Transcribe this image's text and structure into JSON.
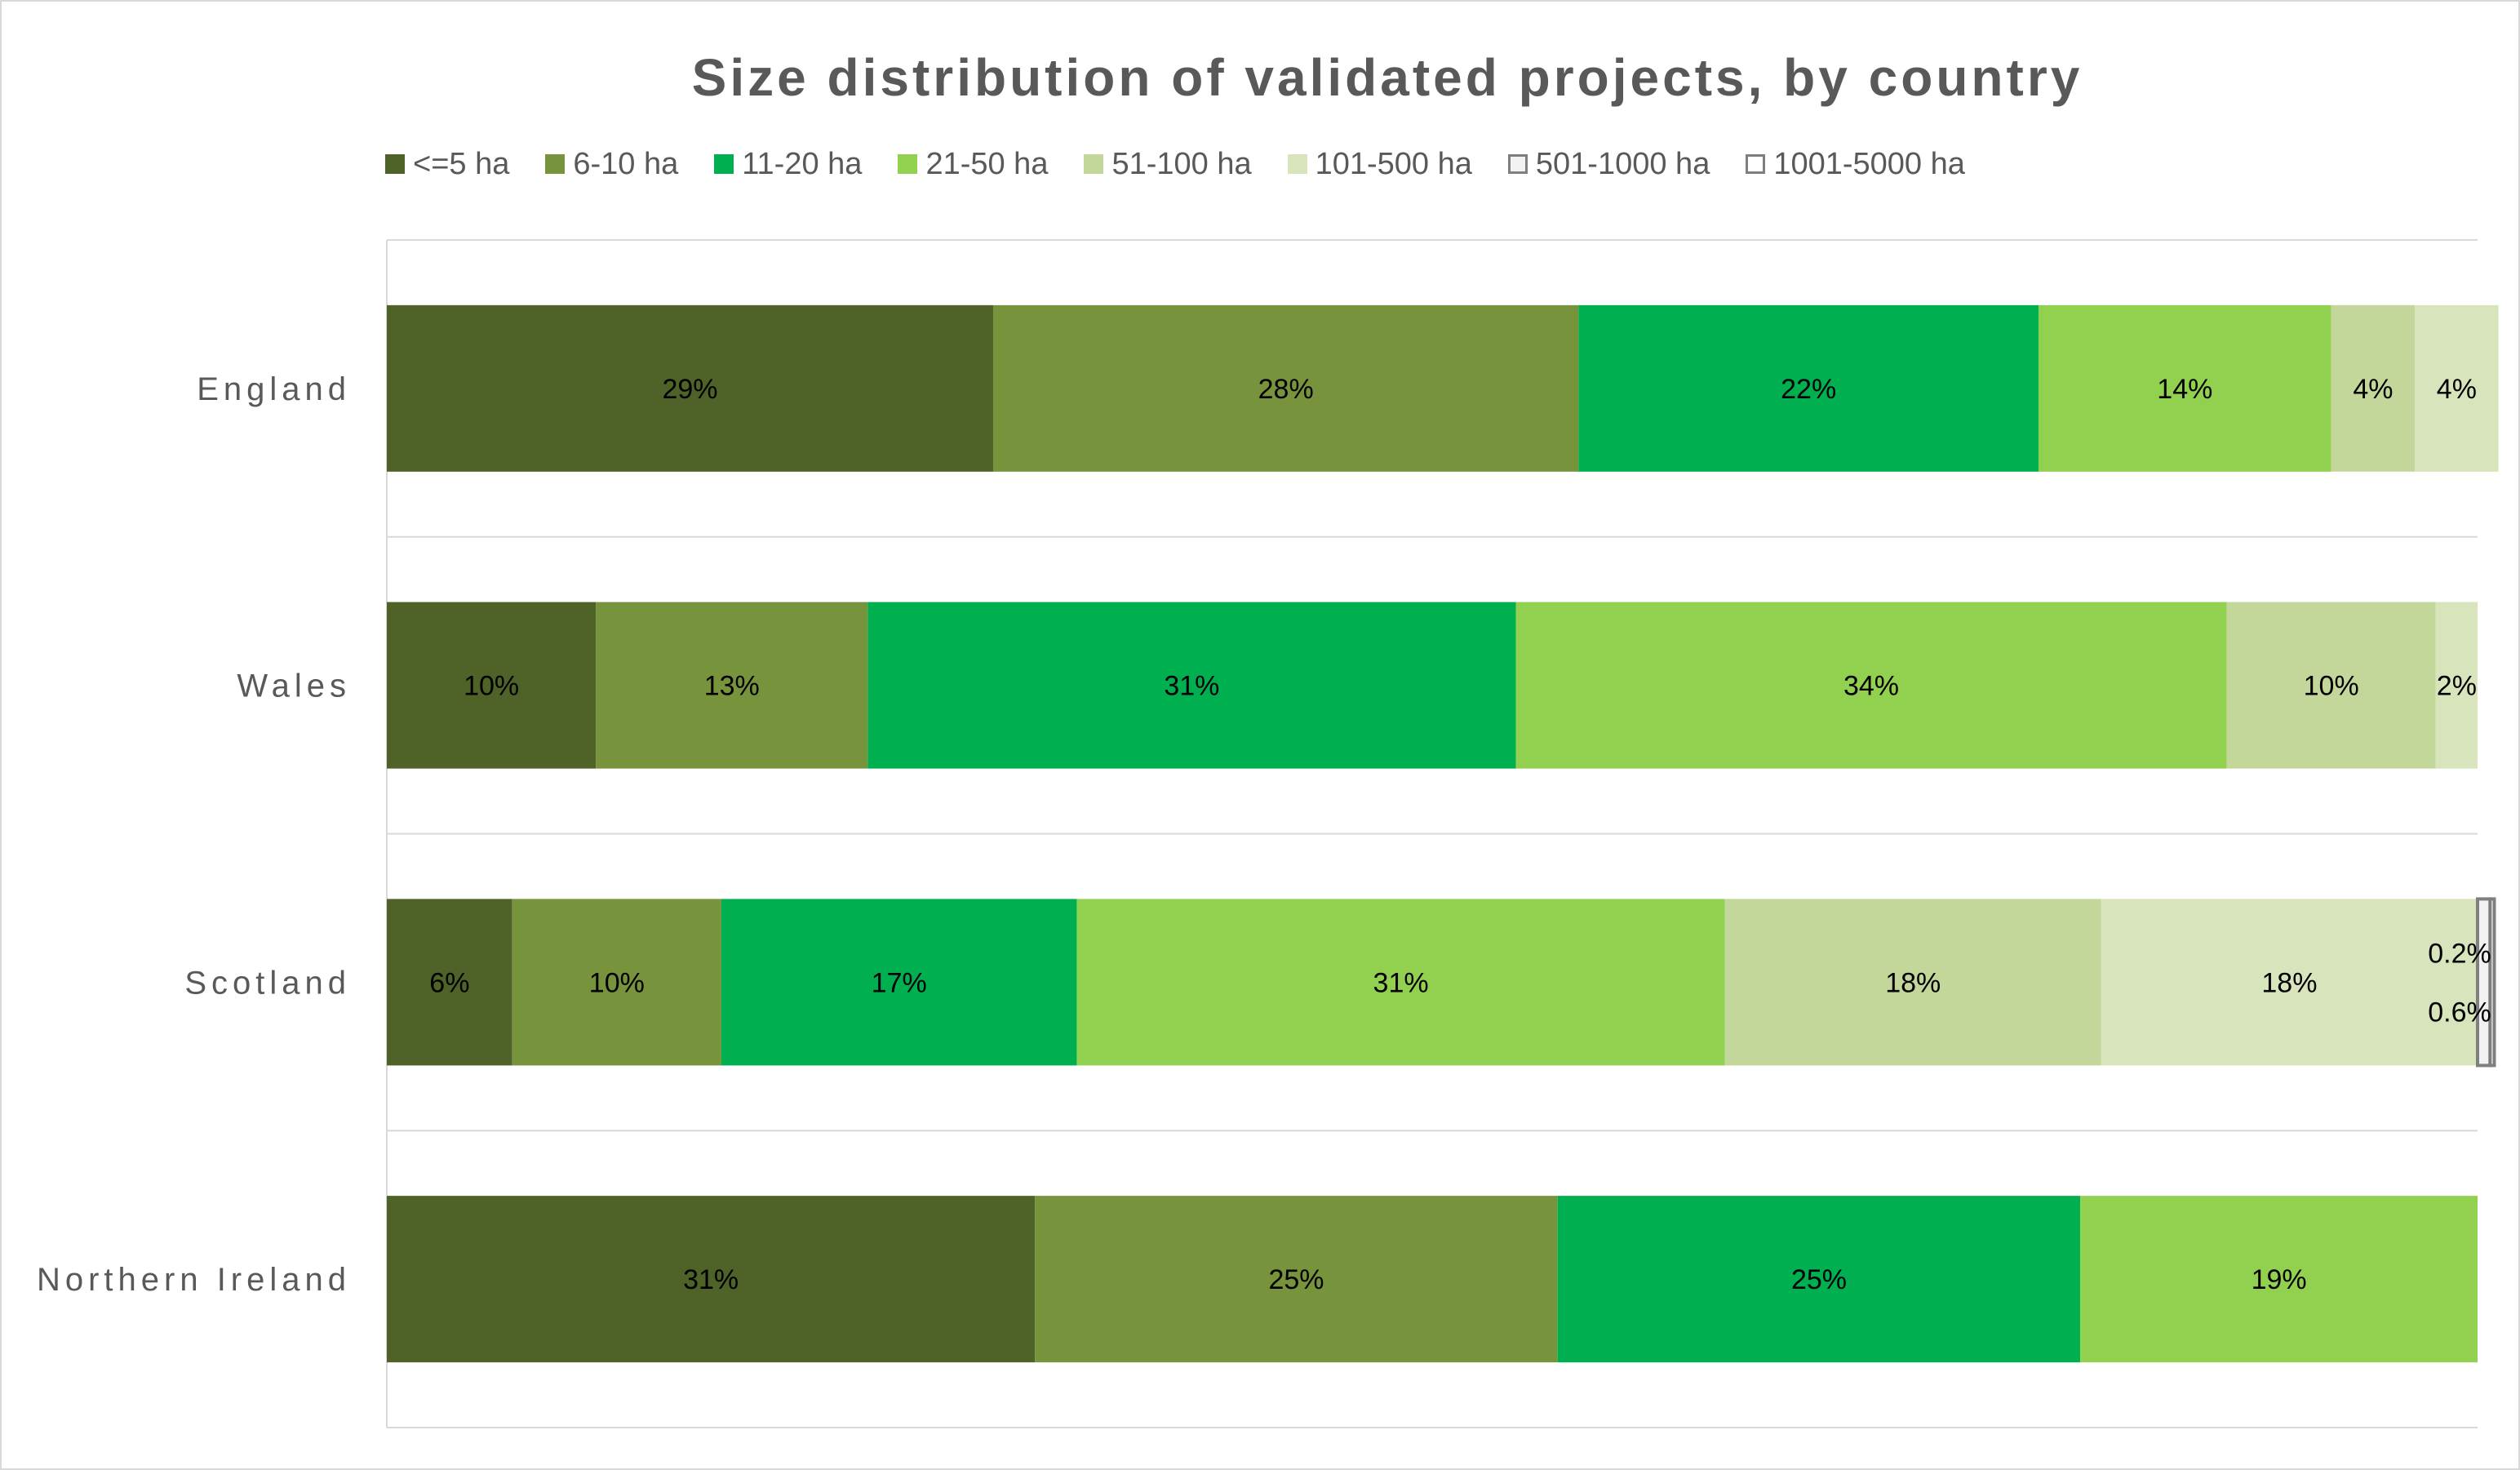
{
  "chart_data": {
    "type": "bar",
    "orientation": "horizontal",
    "stacked": true,
    "percent_stacked": true,
    "title": "Size distribution of validated projects, by country",
    "legend_position": "top",
    "gridlines": true,
    "categories": [
      "England",
      "Wales",
      "Scotland",
      "Northern Ireland"
    ],
    "series": [
      {
        "name": "<=5 ha",
        "color": "#4f6228",
        "values": [
          29,
          10,
          6,
          31
        ],
        "labels": [
          "29%",
          "10%",
          "6%",
          "31%"
        ]
      },
      {
        "name": "6-10 ha",
        "color": "#77933c",
        "values": [
          28,
          13,
          10,
          25
        ],
        "labels": [
          "28%",
          "13%",
          "10%",
          "25%"
        ]
      },
      {
        "name": "11-20 ha",
        "color": "#00b050",
        "values": [
          22,
          31,
          17,
          25
        ],
        "labels": [
          "22%",
          "31%",
          "17%",
          "25%"
        ]
      },
      {
        "name": "21-50 ha",
        "color": "#92d050",
        "values": [
          14,
          34,
          31,
          19
        ],
        "labels": [
          "14%",
          "34%",
          "31%",
          "19%"
        ]
      },
      {
        "name": "51-100 ha",
        "color": "#c4d79b",
        "values": [
          4,
          10,
          18,
          0
        ],
        "labels": [
          "4%",
          "10%",
          "18%",
          ""
        ]
      },
      {
        "name": "101-500 ha",
        "color": "#d8e4bc",
        "values": [
          4,
          2,
          18,
          0
        ],
        "labels": [
          "4%",
          "2%",
          "18%",
          ""
        ]
      },
      {
        "name": "501-1000 ha",
        "color": "#f2f2f2",
        "border": "#7f7f7f",
        "values": [
          0,
          0,
          0.6,
          0
        ],
        "labels": [
          "",
          "",
          "0.6%",
          ""
        ]
      },
      {
        "name": "1001-5000 ha",
        "color": "#ffffff",
        "border": "#7f7f7f",
        "values": [
          0,
          0,
          0.2,
          0
        ],
        "labels": [
          "",
          "",
          "0.2%",
          ""
        ]
      }
    ]
  }
}
